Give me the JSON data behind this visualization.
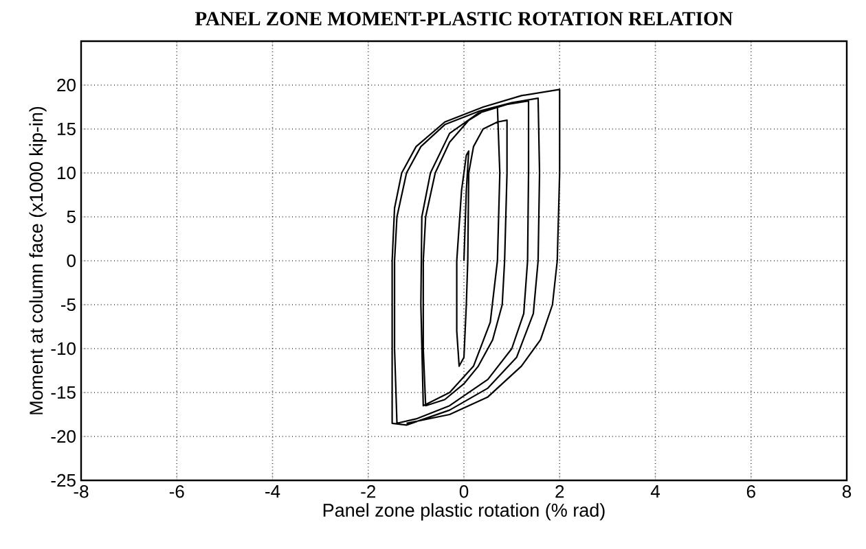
{
  "chart_data": {
    "type": "line",
    "title": "PANEL ZONE MOMENT-PLASTIC ROTATION RELATION",
    "xlabel": "Panel zone plastic rotation (% rad)",
    "ylabel": "Moment at column face (x1000 kip-in)",
    "xlim": [
      -8,
      8
    ],
    "ylim": [
      -25,
      25
    ],
    "xticks": [
      -8,
      -6,
      -4,
      -2,
      0,
      2,
      4,
      6,
      8
    ],
    "yticks": [
      -25,
      -20,
      -15,
      -10,
      -5,
      0,
      5,
      10,
      15,
      20
    ],
    "grid": true,
    "line_style": "solid",
    "marker": "none",
    "series": [
      {
        "color": "#000000",
        "x": [
          0,
          0.05,
          0.1,
          0.05,
          -0.05,
          -0.15,
          -0.15,
          -0.1,
          0,
          0.05,
          0.08,
          0.1,
          0.2,
          0.4,
          0.7,
          0.9,
          0.9,
          0.85,
          0.8,
          0.6,
          0.3,
          0,
          -0.4,
          -0.8,
          -0.85,
          -0.85,
          -0.8,
          -0.6,
          -0.3,
          0.1,
          0.4,
          0.7,
          0.75,
          0.7,
          0.55,
          0.2,
          -0.3,
          -0.85,
          -0.9,
          -0.88,
          -0.7,
          -0.3,
          0.3,
          0.9,
          1.35,
          1.35,
          1.33,
          1.25,
          1.0,
          0.5,
          -0.3,
          -1.0,
          -1.4,
          -1.45,
          -1.45,
          -1.4,
          -1.2,
          -0.9,
          -0.4,
          0.3,
          1.0,
          1.55,
          1.58,
          1.55,
          1.45,
          1.1,
          0.5,
          -0.3,
          -1.2,
          -1.5,
          -1.5,
          -1.5,
          -1.45,
          -1.3,
          -1.0,
          -0.4,
          0.4,
          1.2,
          2.0,
          2.0,
          1.95,
          1.85,
          1.6,
          1.2,
          0.5,
          -0.3,
          -1.2
        ],
        "values": [
          0,
          8,
          12.5,
          12,
          8,
          0,
          -8,
          -12,
          -11,
          -5,
          0,
          10,
          13,
          15,
          15.8,
          16,
          10,
          0,
          -5,
          -9,
          -12,
          -14,
          -15.8,
          -16.5,
          -10,
          0,
          5,
          10,
          13.5,
          16,
          17,
          17.5,
          10,
          0,
          -7,
          -12,
          -15,
          -16.5,
          -5,
          5,
          10,
          14.5,
          16.8,
          17.8,
          18.2,
          10,
          0,
          -6,
          -10,
          -13.5,
          -16.5,
          -18,
          -18.5,
          -10,
          0,
          5,
          10,
          13,
          15.5,
          17,
          18,
          18.5,
          10,
          0,
          -6,
          -11,
          -14.5,
          -17,
          -18.7,
          -18.5,
          -10,
          0,
          6,
          10,
          13,
          15.8,
          17.5,
          18.8,
          19.5,
          10,
          0,
          -5,
          -9,
          -12,
          -15.5,
          -17.5,
          -18.5
        ]
      }
    ]
  }
}
